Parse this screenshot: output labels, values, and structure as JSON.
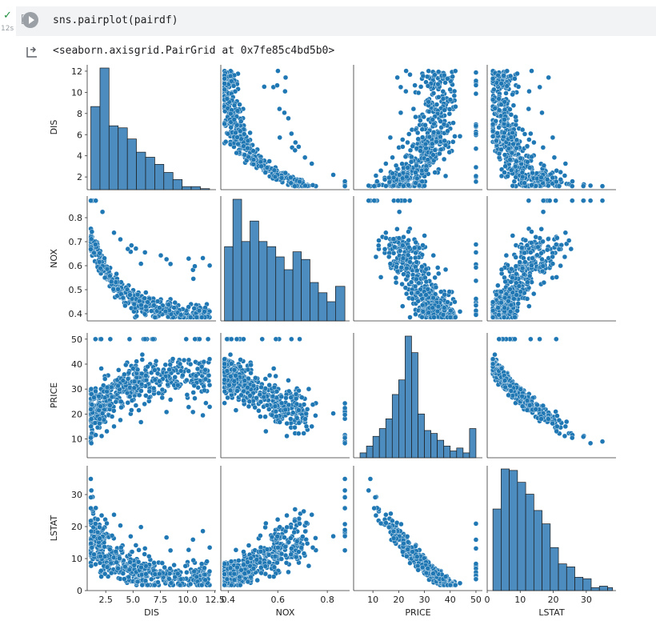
{
  "cell": {
    "status_icon": "check-icon",
    "exec_time": "12s",
    "exec_count": "[ ]",
    "code": "sns.pairplot(pairdf)",
    "output_text": "<seaborn.axisgrid.PairGrid at 0x7fe85c4bd5b0>"
  },
  "colors": {
    "point": "#1f77b4",
    "point_edge": "#ffffff",
    "bar": "#4c8cbf",
    "bar_edge": "#1a1a1a"
  },
  "chart_data": {
    "type": "pairplot",
    "variables": [
      {
        "name": "DIS",
        "range": [
          0.8,
          12.6
        ],
        "ticks": [
          2,
          4,
          6,
          8,
          10,
          12
        ],
        "xticks": [
          2.5,
          5.0,
          7.5,
          10.0,
          12.5
        ]
      },
      {
        "name": "NOX",
        "range": [
          0.37,
          0.89
        ],
        "ticks": [
          0.4,
          0.5,
          0.6,
          0.7,
          0.8
        ],
        "xticks": [
          0.4,
          0.6,
          0.8
        ]
      },
      {
        "name": "PRICE",
        "range": [
          2.5,
          52.5
        ],
        "ticks": [
          10,
          20,
          30,
          40,
          50
        ],
        "xticks": [
          10,
          20,
          30,
          40,
          50
        ]
      },
      {
        "name": "LSTAT",
        "range": [
          0,
          39
        ],
        "ticks": [
          0,
          10,
          20,
          30
        ],
        "xticks": [
          0,
          10,
          20,
          30
        ]
      }
    ],
    "tick_labels": {
      "DIS": [
        "2",
        "4",
        "6",
        "8",
        "10",
        "12"
      ],
      "DIS_x": [
        "2.5",
        "5.0",
        "7.5",
        "10.0",
        "12.5"
      ],
      "NOX": [
        "0.4",
        "0.5",
        "0.6",
        "0.7",
        "0.8"
      ],
      "NOX_x": [
        "0.4",
        "0.6",
        "0.8"
      ],
      "PRICE": [
        "10",
        "20",
        "30",
        "40",
        "50"
      ],
      "LSTAT": [
        "0",
        "10",
        "20",
        "30"
      ]
    },
    "histograms": {
      "DIS": {
        "edges": [
          1.13,
          1.97,
          2.8,
          3.64,
          4.48,
          5.31,
          6.15,
          6.99,
          7.82,
          8.66,
          9.5,
          10.33,
          11.17,
          12.01
        ],
        "counts": [
          82,
          120,
          63,
          61,
          50,
          37,
          32,
          25,
          17,
          10,
          3,
          3,
          1
        ]
      },
      "NOX": {
        "edges": [
          0.385,
          0.419,
          0.454,
          0.488,
          0.523,
          0.557,
          0.592,
          0.626,
          0.661,
          0.695,
          0.73,
          0.764,
          0.799,
          0.833,
          0.871
        ],
        "counts": [
          58,
          95,
          62,
          78,
          62,
          58,
          50,
          40,
          54,
          48,
          30,
          22,
          15,
          27
        ]
      },
      "PRICE": {
        "edges": [
          5,
          7.5,
          10,
          12.5,
          15,
          17.5,
          20,
          22.5,
          25,
          27.5,
          30,
          32.5,
          35,
          37.5,
          40,
          42.5,
          45,
          47.5,
          50
        ],
        "counts": [
          5,
          12,
          22,
          30,
          40,
          65,
          80,
          125,
          108,
          45,
          28,
          25,
          18,
          12,
          7,
          10,
          5,
          30
        ]
      },
      "LSTAT": {
        "edges": [
          1.73,
          4.21,
          6.69,
          9.17,
          11.65,
          14.13,
          16.61,
          19.09,
          21.57,
          24.05,
          26.53,
          29.01,
          31.49,
          33.97,
          36.45,
          37.97
        ],
        "counts": [
          55,
          82,
          81,
          73,
          65,
          54,
          45,
          29,
          18,
          16,
          9,
          8,
          2,
          3,
          2
        ]
      }
    }
  }
}
